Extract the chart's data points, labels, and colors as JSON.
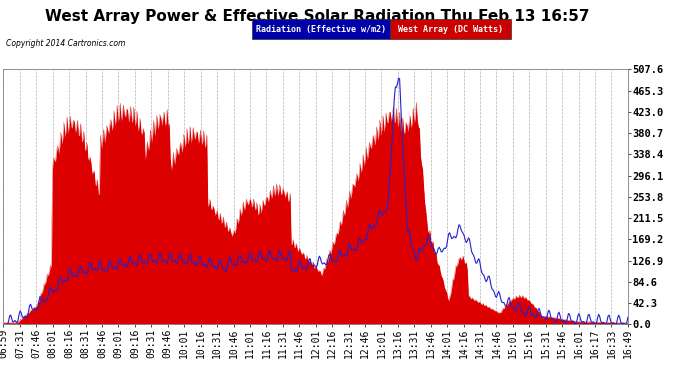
{
  "title": "West Array Power & Effective Solar Radiation Thu Feb 13 16:57",
  "copyright": "Copyright 2014 Cartronics.com",
  "legend1": "Radiation (Effective w/m2)",
  "legend2": "West Array (DC Watts)",
  "legend1_bg": "#0000bb",
  "legend2_bg": "#cc0000",
  "ymin": 0.0,
  "ymax": 507.6,
  "ytick_step": 42.3,
  "background_color": "#ffffff",
  "plot_bg": "#ffffff",
  "grid_color": "#aaaaaa",
  "x_labels": [
    "06:59",
    "07:31",
    "07:46",
    "08:01",
    "08:16",
    "08:31",
    "08:46",
    "09:01",
    "09:16",
    "09:31",
    "09:46",
    "10:01",
    "10:16",
    "10:31",
    "10:46",
    "11:01",
    "11:16",
    "11:31",
    "11:46",
    "12:01",
    "12:16",
    "12:31",
    "12:46",
    "13:01",
    "13:16",
    "13:31",
    "13:46",
    "14:01",
    "14:16",
    "14:31",
    "14:46",
    "15:01",
    "15:16",
    "15:31",
    "15:46",
    "16:01",
    "16:17",
    "16:33",
    "16:49"
  ],
  "title_fontsize": 11,
  "tick_fontsize": 7,
  "ytick_fontsize": 7.5
}
